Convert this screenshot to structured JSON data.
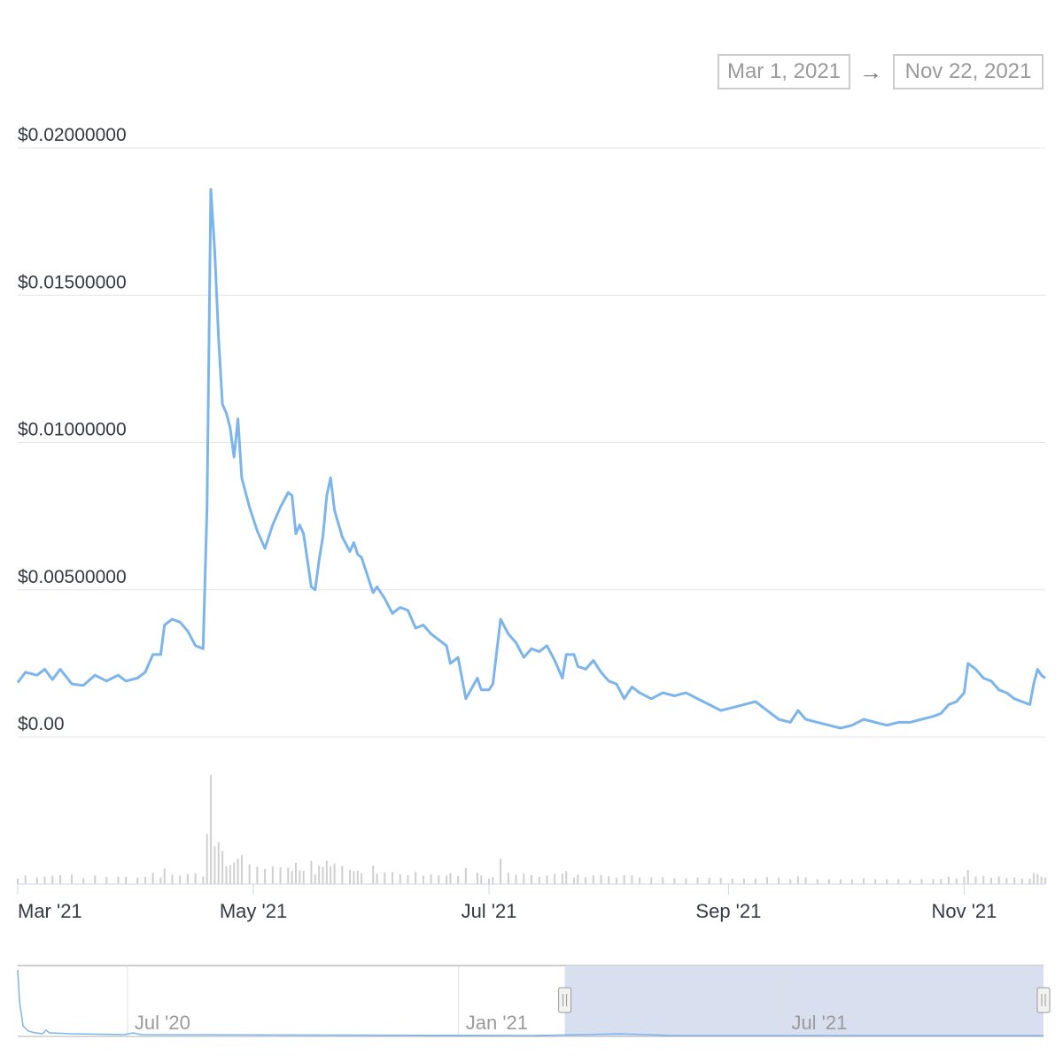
{
  "range_selector": {
    "start": "Mar 1, 2021",
    "arrow": "→",
    "end": "Nov 22, 2021"
  },
  "chart_data": {
    "type": "line",
    "title": "",
    "xlabel": "",
    "ylabel": "",
    "ylim": [
      0,
      0.02
    ],
    "y_ticks": [
      "$0.00",
      "$0.00500000",
      "$0.01000000",
      "$0.01500000",
      "$0.02000000"
    ],
    "x_ticks": [
      "Mar '21",
      "May '21",
      "Jul '21",
      "Sep '21",
      "Nov '21"
    ],
    "x_range": [
      "2021-03-01",
      "2021-11-22"
    ],
    "grid": true,
    "colors": {
      "line": "#7cb5ec",
      "volume": "#cfcfcf",
      "navigator_mask": "#d6deee"
    },
    "series": [
      {
        "points": [
          [
            "2021-03-01",
            0.00185
          ],
          [
            "2021-03-03",
            0.0022
          ],
          [
            "2021-03-06",
            0.0021
          ],
          [
            "2021-03-08",
            0.0023
          ],
          [
            "2021-03-10",
            0.00195
          ],
          [
            "2021-03-12",
            0.0023
          ],
          [
            "2021-03-15",
            0.0018
          ],
          [
            "2021-03-18",
            0.00175
          ],
          [
            "2021-03-21",
            0.0021
          ],
          [
            "2021-03-24",
            0.0019
          ],
          [
            "2021-03-27",
            0.0021
          ],
          [
            "2021-03-29",
            0.0019
          ],
          [
            "2021-04-01",
            0.002
          ],
          [
            "2021-04-03",
            0.0022
          ],
          [
            "2021-04-05",
            0.0028
          ],
          [
            "2021-04-07",
            0.0028
          ],
          [
            "2021-04-08",
            0.0038
          ],
          [
            "2021-04-10",
            0.004
          ],
          [
            "2021-04-12",
            0.0039
          ],
          [
            "2021-04-14",
            0.0036
          ],
          [
            "2021-04-16",
            0.0031
          ],
          [
            "2021-04-18",
            0.003
          ],
          [
            "2021-04-19",
            0.0078
          ],
          [
            "2021-04-20",
            0.0186
          ],
          [
            "2021-04-21",
            0.0165
          ],
          [
            "2021-04-22",
            0.0135
          ],
          [
            "2021-04-23",
            0.0113
          ],
          [
            "2021-04-24",
            0.011
          ],
          [
            "2021-04-25",
            0.0105
          ],
          [
            "2021-04-26",
            0.0095
          ],
          [
            "2021-04-27",
            0.0108
          ],
          [
            "2021-04-28",
            0.0088
          ],
          [
            "2021-04-30",
            0.0078
          ],
          [
            "2021-05-02",
            0.007
          ],
          [
            "2021-05-04",
            0.0064
          ],
          [
            "2021-05-06",
            0.0072
          ],
          [
            "2021-05-08",
            0.0078
          ],
          [
            "2021-05-10",
            0.0083
          ],
          [
            "2021-05-11",
            0.0082
          ],
          [
            "2021-05-12",
            0.0069
          ],
          [
            "2021-05-13",
            0.0072
          ],
          [
            "2021-05-14",
            0.0069
          ],
          [
            "2021-05-16",
            0.0051
          ],
          [
            "2021-05-17",
            0.005
          ],
          [
            "2021-05-18",
            0.006
          ],
          [
            "2021-05-19",
            0.0068
          ],
          [
            "2021-05-20",
            0.0082
          ],
          [
            "2021-05-21",
            0.0088
          ],
          [
            "2021-05-22",
            0.0077
          ],
          [
            "2021-05-24",
            0.0068
          ],
          [
            "2021-05-26",
            0.0063
          ],
          [
            "2021-05-27",
            0.0066
          ],
          [
            "2021-05-28",
            0.0062
          ],
          [
            "2021-05-29",
            0.0061
          ],
          [
            "2021-06-01",
            0.0049
          ],
          [
            "2021-06-02",
            0.0051
          ],
          [
            "2021-06-04",
            0.0047
          ],
          [
            "2021-06-06",
            0.0042
          ],
          [
            "2021-06-08",
            0.0044
          ],
          [
            "2021-06-10",
            0.0043
          ],
          [
            "2021-06-12",
            0.0037
          ],
          [
            "2021-06-14",
            0.0038
          ],
          [
            "2021-06-16",
            0.0035
          ],
          [
            "2021-06-18",
            0.0033
          ],
          [
            "2021-06-20",
            0.0031
          ],
          [
            "2021-06-21",
            0.0025
          ],
          [
            "2021-06-23",
            0.0027
          ],
          [
            "2021-06-25",
            0.0013
          ],
          [
            "2021-06-28",
            0.002
          ],
          [
            "2021-06-29",
            0.0016
          ],
          [
            "2021-07-01",
            0.0016
          ],
          [
            "2021-07-02",
            0.0018
          ],
          [
            "2021-07-04",
            0.004
          ],
          [
            "2021-07-06",
            0.0035
          ],
          [
            "2021-07-08",
            0.0032
          ],
          [
            "2021-07-10",
            0.0027
          ],
          [
            "2021-07-12",
            0.003
          ],
          [
            "2021-07-14",
            0.0029
          ],
          [
            "2021-07-16",
            0.0031
          ],
          [
            "2021-07-18",
            0.0026
          ],
          [
            "2021-07-20",
            0.002
          ],
          [
            "2021-07-21",
            0.0028
          ],
          [
            "2021-07-23",
            0.0028
          ],
          [
            "2021-07-24",
            0.0024
          ],
          [
            "2021-07-26",
            0.0023
          ],
          [
            "2021-07-28",
            0.0026
          ],
          [
            "2021-07-30",
            0.0022
          ],
          [
            "2021-08-01",
            0.0019
          ],
          [
            "2021-08-03",
            0.0018
          ],
          [
            "2021-08-05",
            0.0013
          ],
          [
            "2021-08-07",
            0.0017
          ],
          [
            "2021-08-09",
            0.0015
          ],
          [
            "2021-08-12",
            0.0013
          ],
          [
            "2021-08-15",
            0.0015
          ],
          [
            "2021-08-18",
            0.0014
          ],
          [
            "2021-08-21",
            0.0015
          ],
          [
            "2021-08-24",
            0.0013
          ],
          [
            "2021-08-27",
            0.0011
          ],
          [
            "2021-08-30",
            0.0009
          ],
          [
            "2021-09-02",
            0.001
          ],
          [
            "2021-09-05",
            0.0011
          ],
          [
            "2021-09-08",
            0.0012
          ],
          [
            "2021-09-11",
            0.0009
          ],
          [
            "2021-09-14",
            0.0006
          ],
          [
            "2021-09-17",
            0.0005
          ],
          [
            "2021-09-19",
            0.0009
          ],
          [
            "2021-09-21",
            0.0006
          ],
          [
            "2021-09-24",
            0.0005
          ],
          [
            "2021-09-27",
            0.0004
          ],
          [
            "2021-09-30",
            0.0003
          ],
          [
            "2021-10-03",
            0.0004
          ],
          [
            "2021-10-06",
            0.0006
          ],
          [
            "2021-10-09",
            0.0005
          ],
          [
            "2021-10-12",
            0.0004
          ],
          [
            "2021-10-15",
            0.0005
          ],
          [
            "2021-10-18",
            0.0005
          ],
          [
            "2021-10-21",
            0.0006
          ],
          [
            "2021-10-24",
            0.0007
          ],
          [
            "2021-10-26",
            0.0008
          ],
          [
            "2021-10-28",
            0.0011
          ],
          [
            "2021-10-30",
            0.0012
          ],
          [
            "2021-11-01",
            0.0015
          ],
          [
            "2021-11-02",
            0.0025
          ],
          [
            "2021-11-04",
            0.0023
          ],
          [
            "2021-11-06",
            0.002
          ],
          [
            "2021-11-08",
            0.0019
          ],
          [
            "2021-11-10",
            0.0016
          ],
          [
            "2021-11-12",
            0.0015
          ],
          [
            "2021-11-14",
            0.0013
          ],
          [
            "2021-11-16",
            0.0012
          ],
          [
            "2021-11-18",
            0.0011
          ],
          [
            "2021-11-19",
            0.0018
          ],
          [
            "2021-11-20",
            0.0023
          ],
          [
            "2021-11-21",
            0.0021
          ],
          [
            "2021-11-22",
            0.002
          ]
        ]
      }
    ]
  },
  "navigator": {
    "labels": [
      "Jul '20",
      "Jan '21",
      "Jul '21"
    ]
  }
}
